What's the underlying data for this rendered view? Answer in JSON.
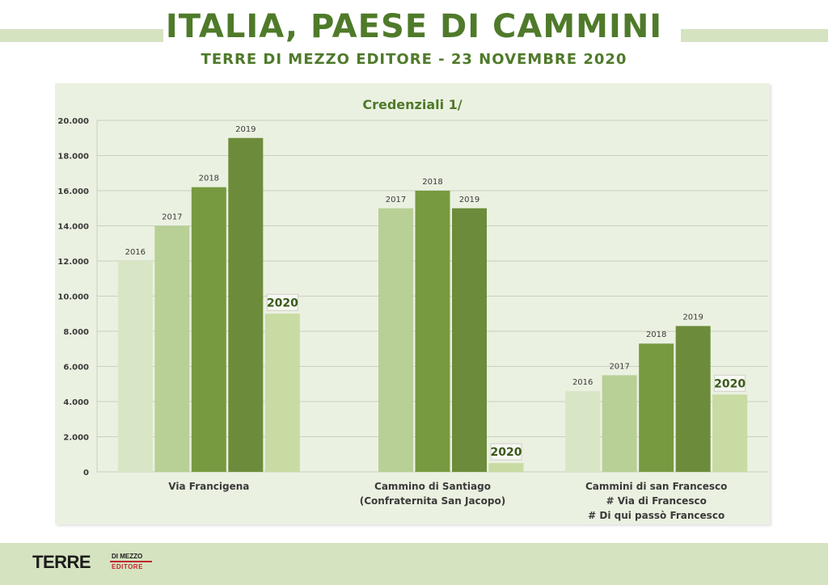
{
  "header": {
    "title": "ITALIA, PAESE DI CAMMINI",
    "subtitle": "TERRE DI MEZZO EDITORE - 23 NOVEMBRE 2020"
  },
  "footer": {
    "logo_main_a": "TERRE",
    "logo_main_b": "DI MEZZO",
    "logo_sub": "EDITORE"
  },
  "colors": {
    "title_green": "#4f7a2a",
    "background_band": "#d5e3c1",
    "plot_background": "#ebf1e1",
    "year_2016": "#d9e6c6",
    "year_2017": "#b8cf96",
    "year_2018": "#779a40",
    "year_2019": "#6d8c3b",
    "year_2020": "#c8dba3",
    "logo_red": "#c0272d"
  },
  "chart_data": {
    "type": "bar",
    "title": "Credenziali 1/",
    "ylim": [
      0,
      20000
    ],
    "yticks": [
      0,
      2000,
      4000,
      6000,
      8000,
      10000,
      12000,
      14000,
      16000,
      18000,
      20000
    ],
    "ytick_labels": [
      "0",
      "2.000",
      "4.000",
      "6.000",
      "8.000",
      "10.000",
      "12.000",
      "14.000",
      "16.000",
      "18.000",
      "20.000"
    ],
    "grid": true,
    "groups": [
      {
        "label_lines": [
          "Via Francigena"
        ],
        "bars": [
          {
            "year": "2016",
            "value": 12000
          },
          {
            "year": "2017",
            "value": 14000
          },
          {
            "year": "2018",
            "value": 16200
          },
          {
            "year": "2019",
            "value": 19000
          },
          {
            "year": "2020",
            "value": 9000
          }
        ]
      },
      {
        "label_lines": [
          "Cammino di Santiago",
          "(Confraternita San Jacopo)"
        ],
        "bars": [
          {
            "year": "2017",
            "value": 15000
          },
          {
            "year": "2018",
            "value": 16000
          },
          {
            "year": "2019",
            "value": 15000
          },
          {
            "year": "2020",
            "value": 500
          }
        ]
      },
      {
        "label_lines": [
          "Cammini di san Francesco",
          "# Via di Francesco",
          "# Di qui passò Francesco"
        ],
        "bars": [
          {
            "year": "2016",
            "value": 4600
          },
          {
            "year": "2017",
            "value": 5500
          },
          {
            "year": "2018",
            "value": 7300
          },
          {
            "year": "2019",
            "value": 8300
          },
          {
            "year": "2020",
            "value": 4400
          }
        ]
      }
    ]
  }
}
